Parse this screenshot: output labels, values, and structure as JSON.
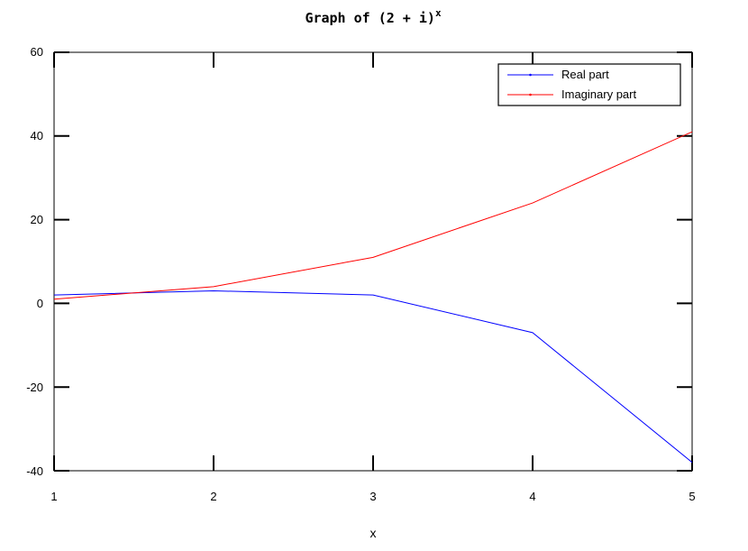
{
  "chart_data": {
    "type": "line",
    "title_main": "Graph of (2 + i)",
    "title_superscript": "x",
    "xlabel": "x",
    "ylabel": "",
    "x": [
      1,
      2,
      3,
      4,
      5
    ],
    "xlim": [
      1,
      5
    ],
    "ylim": [
      -40,
      60
    ],
    "x_ticks": [
      "1",
      "2",
      "3",
      "4",
      "5"
    ],
    "y_ticks": [
      "60",
      "40",
      "20",
      "0",
      "-20",
      "-40"
    ],
    "grid": false,
    "legend_position": "top-right",
    "series": [
      {
        "name": "Real part",
        "color": "#0000ff",
        "values": [
          2,
          3,
          2,
          -7,
          -38
        ]
      },
      {
        "name": "Imaginary part",
        "color": "#ff0000",
        "values": [
          1,
          4,
          11,
          24,
          41
        ]
      }
    ]
  }
}
